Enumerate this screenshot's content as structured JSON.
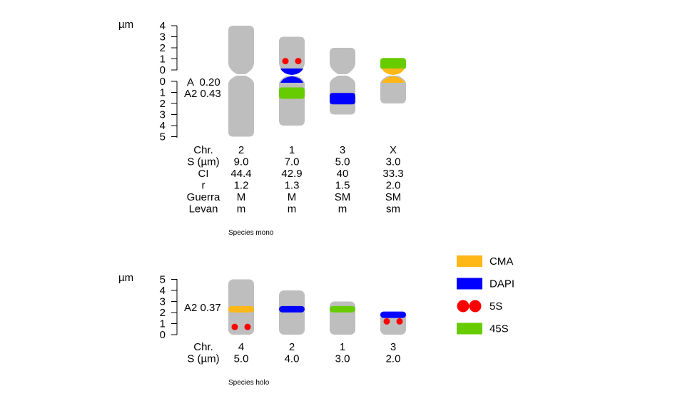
{
  "colors": {
    "chromosome": "#bebebe",
    "CMA": "#ffb617",
    "DAPI": "#0000ff",
    "5S": "#ff0000",
    "45S": "#66cc00"
  },
  "unit_label": "µm",
  "panel_mono": {
    "caption": "Species mono",
    "index_A": "A  0.20",
    "index_A2": "A2 0.43",
    "y_ticks_upper": [
      "4",
      "3",
      "2",
      "1",
      "0"
    ],
    "y_ticks_lower": [
      "0",
      "1",
      "2",
      "3",
      "4",
      "5"
    ],
    "table": {
      "row_labels": [
        "Chr.",
        "S (µm)",
        "CI",
        "r",
        "Guerra",
        "Levan"
      ],
      "columns": [
        [
          "2",
          "9.0",
          "44.4",
          "1.2",
          "M",
          "m"
        ],
        [
          "1",
          "7.0",
          "42.9",
          "1.3",
          "M",
          "m"
        ],
        [
          "3",
          "5.0",
          "40",
          "1.5",
          "SM",
          "m"
        ],
        [
          "X",
          "3.0",
          "33.3",
          "2.0",
          "SM",
          "sm"
        ]
      ]
    },
    "chromosomes": [
      {
        "name": "2",
        "short_arm": 4.0,
        "long_arm": 5.0,
        "marks": []
      },
      {
        "name": "1",
        "short_arm": 3.0,
        "long_arm": 4.0,
        "marks": [
          {
            "type": "5S",
            "arm": "p",
            "pos": 0.8
          },
          {
            "type": "DAPI",
            "arm": "p",
            "pos": 0.1
          },
          {
            "type": "DAPI",
            "arm": "q",
            "pos": 0.1
          },
          {
            "type": "45S",
            "arm": "q",
            "pos": 1.0
          }
        ]
      },
      {
        "name": "3",
        "short_arm": 2.0,
        "long_arm": 3.0,
        "marks": [
          {
            "type": "DAPI",
            "arm": "q",
            "pos": 1.5
          }
        ]
      },
      {
        "name": "X",
        "short_arm": 1.0,
        "long_arm": 2.0,
        "marks": [
          {
            "type": "45S",
            "arm": "p",
            "pos": 0.5
          },
          {
            "type": "CMA",
            "arm": "p",
            "pos": 0.1
          },
          {
            "type": "CMA",
            "arm": "q",
            "pos": 0.1
          }
        ]
      }
    ]
  },
  "panel_holo": {
    "caption": "Species holo",
    "index_A2": "A2 0.37",
    "y_ticks": [
      "5",
      "4",
      "3",
      "2",
      "1",
      "0"
    ],
    "table": {
      "row_labels": [
        "Chr.",
        "S (µm)"
      ],
      "columns": [
        [
          "4",
          "5.0"
        ],
        [
          "2",
          "4.0"
        ],
        [
          "1",
          "3.0"
        ],
        [
          "3",
          "2.0"
        ]
      ]
    },
    "chromosomes": [
      {
        "name": "4",
        "length": 5.0,
        "marks": [
          {
            "type": "CMA",
            "pos": 2.3
          },
          {
            "type": "5S",
            "pos": 0.7
          }
        ]
      },
      {
        "name": "2",
        "length": 4.0,
        "marks": [
          {
            "type": "DAPI",
            "pos": 2.3
          }
        ]
      },
      {
        "name": "1",
        "length": 3.0,
        "marks": [
          {
            "type": "45S",
            "pos": 2.3
          }
        ]
      },
      {
        "name": "3",
        "length": 2.0,
        "marks": [
          {
            "type": "DAPI",
            "pos": 1.8
          },
          {
            "type": "5S",
            "pos": 1.2
          }
        ]
      }
    ]
  },
  "legend": [
    {
      "key": "CMA",
      "label": "CMA"
    },
    {
      "key": "DAPI",
      "label": "DAPI"
    },
    {
      "key": "5S",
      "label": "5S"
    },
    {
      "key": "45S",
      "label": "45S"
    }
  ]
}
